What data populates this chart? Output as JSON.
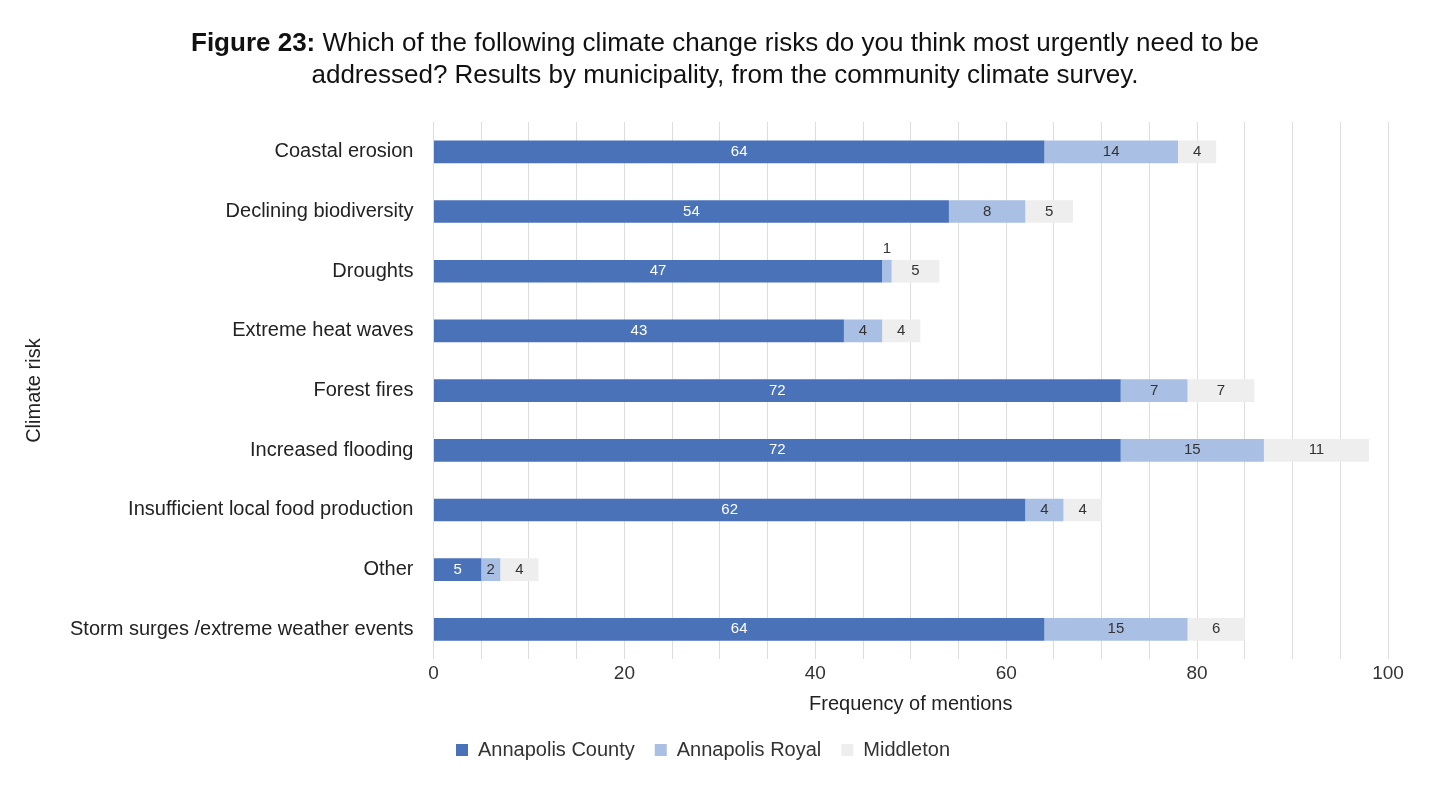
{
  "chart_data": {
    "type": "bar",
    "orientation": "horizontal",
    "stacked": true,
    "title": "Figure 23: Which of the following climate change risks do you think most urgently need to be addressed? Results by municipality, from the community climate survey.",
    "xlabel": "Frequency of mentions",
    "ylabel": "Climate risk",
    "categories": [
      "Coastal erosion",
      "Declining biodiversity",
      "Droughts",
      "Extreme heat waves",
      "Forest fires",
      "Increased flooding",
      "Insufficient local food production",
      "Other",
      "Storm surges /extreme weather events"
    ],
    "series": [
      {
        "name": "Annapolis County",
        "color": "#4a72b8",
        "values": [
          64,
          54,
          47,
          43,
          72,
          72,
          62,
          5,
          64
        ]
      },
      {
        "name": "Annapolis Royal",
        "color": "#a9bfe3",
        "values": [
          14,
          8,
          1,
          4,
          7,
          15,
          4,
          2,
          15
        ]
      },
      {
        "name": "Middleton",
        "color": "#eeeeee",
        "values": [
          4,
          5,
          5,
          4,
          7,
          11,
          4,
          4,
          6
        ]
      }
    ],
    "xlim": [
      0,
      100
    ],
    "xticks": [
      0,
      {
        "value": 5,
        "label": null
      },
      20,
      {
        "value": 10,
        "label": null
      },
      {
        "value": 15,
        "label": null
      },
      {
        "value": 25,
        "label": null
      },
      {
        "value": 30,
        "label": null
      },
      {
        "value": 35,
        "label": null
      },
      40,
      {
        "value": 45,
        "label": null
      },
      {
        "value": 50,
        "label": null
      },
      {
        "value": 55,
        "label": null
      },
      60,
      {
        "value": 65,
        "label": null
      },
      {
        "value": 70,
        "label": null
      },
      {
        "value": 75,
        "label": null
      },
      80,
      {
        "value": 85,
        "label": null
      },
      {
        "value": 90,
        "label": null
      },
      {
        "value": 95,
        "label": null
      },
      100
    ],
    "grid": "x",
    "legend": "bottom",
    "data_labels": true
  }
}
